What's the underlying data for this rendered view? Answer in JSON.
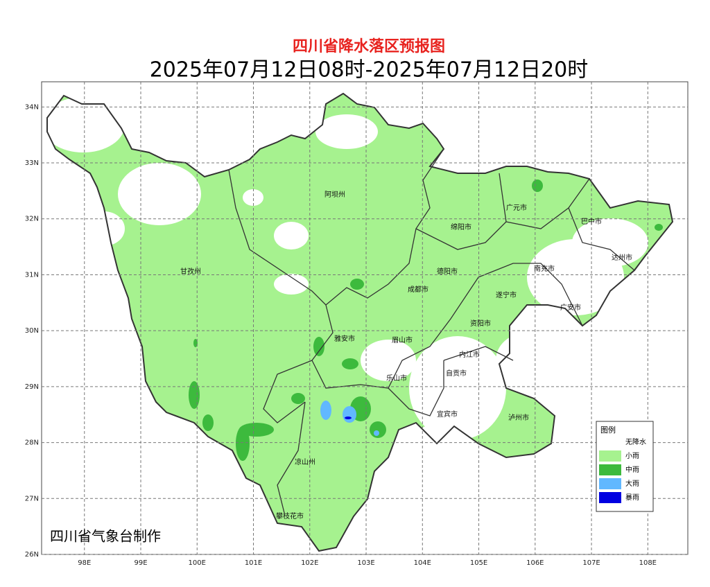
{
  "header": {
    "title": "四川省降水落区预报图",
    "subtitle": "2025年07月12日08时-2025年07月12日20时"
  },
  "map": {
    "xlim": [
      97.24,
      108.71
    ],
    "ylim": [
      26,
      34.45
    ],
    "xticks": [
      {
        "value": 98,
        "label": "98E"
      },
      {
        "value": 99,
        "label": "99E"
      },
      {
        "value": 100,
        "label": "100E"
      },
      {
        "value": 101,
        "label": "101E"
      },
      {
        "value": 102,
        "label": "102E"
      },
      {
        "value": 103,
        "label": "103E"
      },
      {
        "value": 104,
        "label": "104E"
      },
      {
        "value": 105,
        "label": "105E"
      },
      {
        "value": 106,
        "label": "106E"
      },
      {
        "value": 107,
        "label": "107E"
      },
      {
        "value": 108,
        "label": "108E"
      }
    ],
    "yticks": [
      {
        "value": 26,
        "label": "26N"
      },
      {
        "value": 27,
        "label": "27N"
      },
      {
        "value": 28,
        "label": "28N"
      },
      {
        "value": 29,
        "label": "29N"
      },
      {
        "value": 30,
        "label": "30N"
      },
      {
        "value": 31,
        "label": "31N"
      },
      {
        "value": 32,
        "label": "32N"
      },
      {
        "value": 33,
        "label": "33N"
      },
      {
        "value": 34,
        "label": "34N"
      }
    ],
    "grid": true,
    "cities": [
      "阿坝州",
      "甘孜州",
      "广元市",
      "巴中市",
      "绵阳市",
      "达州市",
      "南充市",
      "德阳市",
      "成都市",
      "遂宁市",
      "广安市",
      "资阳市",
      "雅安市",
      "眉山市",
      "内江市",
      "自贡市",
      "乐山市",
      "宜宾市",
      "泸州市",
      "凉山州",
      "攀枝花市"
    ]
  },
  "legend": {
    "title": "图例",
    "items": [
      {
        "label": "无降水",
        "color": "#ffffff"
      },
      {
        "label": "小雨",
        "color": "#a6f28f"
      },
      {
        "label": "中雨",
        "color": "#3dba3d"
      },
      {
        "label": "大雨",
        "color": "#61b8ff"
      },
      {
        "label": "暴雨",
        "color": "#0000e1"
      }
    ]
  },
  "footer": "四川省气象台制作"
}
